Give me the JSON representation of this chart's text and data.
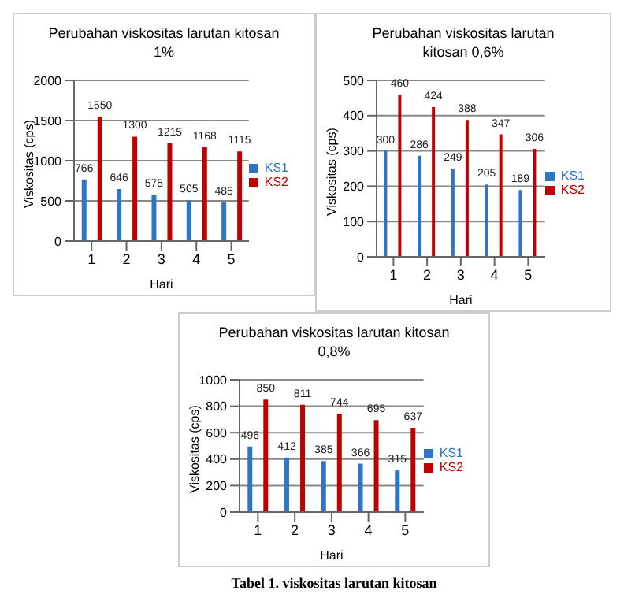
{
  "chart_data": [
    {
      "type": "bar",
      "title": "Perubahan viskositas larutan kitosan 1%",
      "xlabel": "Hari",
      "ylabel": "Viskositas (cps)",
      "categories": [
        "1",
        "2",
        "3",
        "4",
        "5"
      ],
      "series": [
        {
          "name": "KS1",
          "color": "#2e75c8",
          "values": [
            766,
            646,
            575,
            505,
            485
          ]
        },
        {
          "name": "KS2",
          "color": "#c00000",
          "values": [
            1550,
            1300,
            1215,
            1168,
            1115
          ]
        }
      ],
      "ylim": [
        0,
        2000
      ],
      "yticks": [
        0,
        500,
        1000,
        1500,
        2000
      ],
      "grid": "y",
      "legend": "right",
      "data_labels": true
    },
    {
      "type": "bar",
      "title": "Perubahan viskositas larutan kitosan 0,6%",
      "xlabel": "Hari",
      "ylabel": "Viskositas (cps)",
      "categories": [
        "1",
        "2",
        "3",
        "4",
        "5"
      ],
      "series": [
        {
          "name": "KS1",
          "color": "#2e75c8",
          "values": [
            300,
            286,
            249,
            205,
            189
          ]
        },
        {
          "name": "KS2",
          "color": "#c00000",
          "values": [
            460,
            424,
            388,
            347,
            306
          ]
        }
      ],
      "ylim": [
        0,
        500
      ],
      "yticks": [
        0,
        100,
        200,
        300,
        400,
        500
      ],
      "grid": "y",
      "legend": "right",
      "data_labels": true
    },
    {
      "type": "bar",
      "title": "Perubahan viskositas larutan kitosan 0,8%",
      "xlabel": "Hari",
      "ylabel": "Viskositas (cps)",
      "categories": [
        "1",
        "2",
        "3",
        "4",
        "5"
      ],
      "series": [
        {
          "name": "KS1",
          "color": "#2e75c8",
          "values": [
            496,
            412,
            385,
            366,
            315
          ]
        },
        {
          "name": "KS2",
          "color": "#c00000",
          "values": [
            850,
            811,
            744,
            695,
            637
          ]
        }
      ],
      "ylim": [
        0,
        1000
      ],
      "yticks": [
        0,
        200,
        400,
        600,
        800,
        1000
      ],
      "grid": "y",
      "legend": "right",
      "data_labels": true,
      "annotations": [
        "Tabel 1. viskositas larutan kitosan"
      ]
    }
  ]
}
